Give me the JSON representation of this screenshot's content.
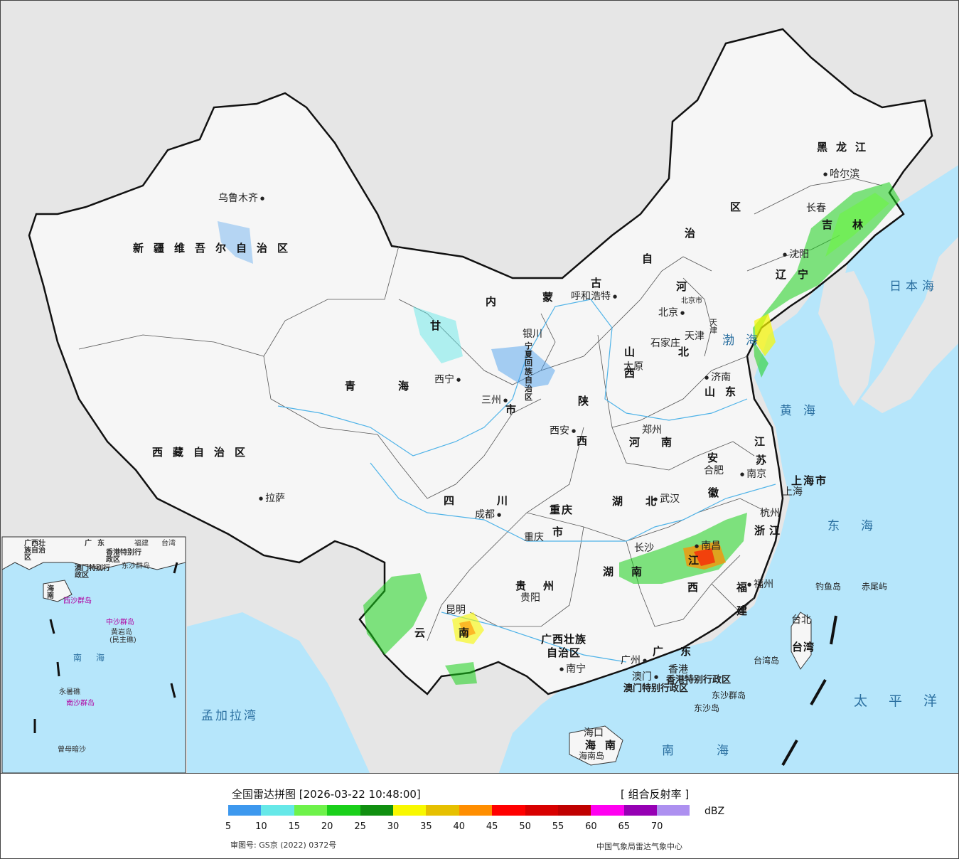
{
  "map": {
    "colors": {
      "ocean": "#b6e6fb",
      "land_outside": "#e6e6e6",
      "land_china": "#f6f6f6",
      "border": "#111111",
      "river": "#4fb3e8"
    },
    "regions": {
      "xinjiang": "新疆维吾尔自治区",
      "xizang": "西藏自治区",
      "qinghai": "青海",
      "gansu": "甘",
      "neimenggu_1": "内",
      "neimenggu_2": "蒙",
      "neimenggu_3": "古",
      "neimenggu_4": "自",
      "neimenggu_5": "治",
      "neimenggu_6": "区",
      "heilongjiang": "黑龙江",
      "jilin": "吉林",
      "liaoning": "辽宁",
      "hebei_1": "河",
      "hebei_2": "北",
      "shanxi": "山西",
      "shaanxi_1": "陕",
      "shaanxi_2": "西",
      "ningxia": "宁夏回族自治区",
      "shandong": "山东",
      "henan": "河南",
      "jiangsu_1": "江",
      "jiangsu_2": "苏",
      "anhui_1": "安",
      "anhui_2": "徽",
      "shanghai": "上海市",
      "zhejiang": "浙江",
      "hubei": "湖北",
      "hunan_1": "湖",
      "hunan_2": "南",
      "jiangxi_1": "江",
      "jiangxi_2": "西",
      "fujian_1": "福",
      "fujian_2": "建",
      "sichuan": "四川",
      "chongqing_1": "重庆",
      "chongqing_2": "市",
      "guizhou": "贵州",
      "yunnan_1": "云",
      "yunnan_2": "南",
      "guangxi_1": "广西壮族",
      "guangxi_2": "自治区",
      "guangdong": "广东",
      "hainan_1": "海",
      "hainan_2": "南",
      "taiwan": "台湾",
      "hongkong": "香港特别行政区",
      "macao": "澳门特别行政区",
      "gansu_shi": "市",
      "beijing_shi": "北京市",
      "tianjin": "天津"
    },
    "cities": {
      "urumqi": "乌鲁木齐",
      "lhasa": "拉萨",
      "xining": "西宁",
      "lanzhou": "三州",
      "yinchuan": "银川",
      "hohhot": "呼和浩特",
      "beijing": "北京",
      "tianjin": "天津",
      "shijiazhuang": "石家庄",
      "taiyuan": "太原",
      "jinan": "济南",
      "xian": "西安",
      "zhengzhou": "郑州",
      "hefei": "合肥",
      "nanjing": "南京",
      "shanghai": "上海",
      "hangzhou": "杭州",
      "wuhan": "武汉",
      "changsha": "长沙",
      "nanchang": "南昌",
      "fuzhou": "福州",
      "taipei": "台北",
      "chengdu": "成都",
      "chongqing": "重庆",
      "guiyang": "贵阳",
      "kunming": "昆明",
      "nanning": "南宁",
      "guangzhou": "广州",
      "hongkong": "香港",
      "macao": "澳门",
      "haikou": "海口",
      "shenyang": "沈阳",
      "changchun": "长春",
      "harbin": "哈尔滨"
    },
    "seas": {
      "bohai": "渤海",
      "huanghai": "黄海",
      "donghai": "东海",
      "nanhai": "南海",
      "japan_sea": "日本海",
      "pacific": "太平洋",
      "bengal": "孟加拉湾"
    },
    "islands": {
      "diaoyu": "钓鱼岛",
      "chiwei": "赤尾屿",
      "taiwan_island": "台湾岛",
      "dongsha": "东沙群岛",
      "dongsha_2": "东沙岛",
      "hainan_island": "海南岛"
    },
    "inset": {
      "guangxi": "广西壮族自治区",
      "guangdong": "广东",
      "fujian": "福建",
      "taiwan": "台湾",
      "hk": "香港特别行政区",
      "macao": "澳门特别行政区",
      "dongsha": "东沙群岛",
      "hainan": "海南",
      "xisha": "西沙群岛",
      "zhongsha": "中沙群岛",
      "huangyan": "黄岩岛",
      "huangyan_2": "(民主礁)",
      "nanhai": "南海",
      "yongshu": "永暑礁",
      "nansha": "南沙群岛",
      "zengmu": "曾母暗沙"
    }
  },
  "legend": {
    "title": "全国雷达拼图 [2026-03-22 10:48:00]",
    "product": "[ 组合反射率 ]",
    "unit": "dBZ",
    "colors": [
      "#3d98ee",
      "#66e8e8",
      "#6ef24a",
      "#1ad01a",
      "#108f10",
      "#f8f800",
      "#e6c000",
      "#ff8e00",
      "#ff0000",
      "#d80000",
      "#c00000",
      "#ff00f0",
      "#9600b4",
      "#ad90f0"
    ],
    "ticks": [
      "5",
      "10",
      "15",
      "20",
      "25",
      "30",
      "35",
      "40",
      "45",
      "50",
      "55",
      "60",
      "65",
      "70"
    ],
    "approval_number": "审图号: GS京 (2022) 0372号",
    "credit": "中国气象局雷达气象中心"
  }
}
